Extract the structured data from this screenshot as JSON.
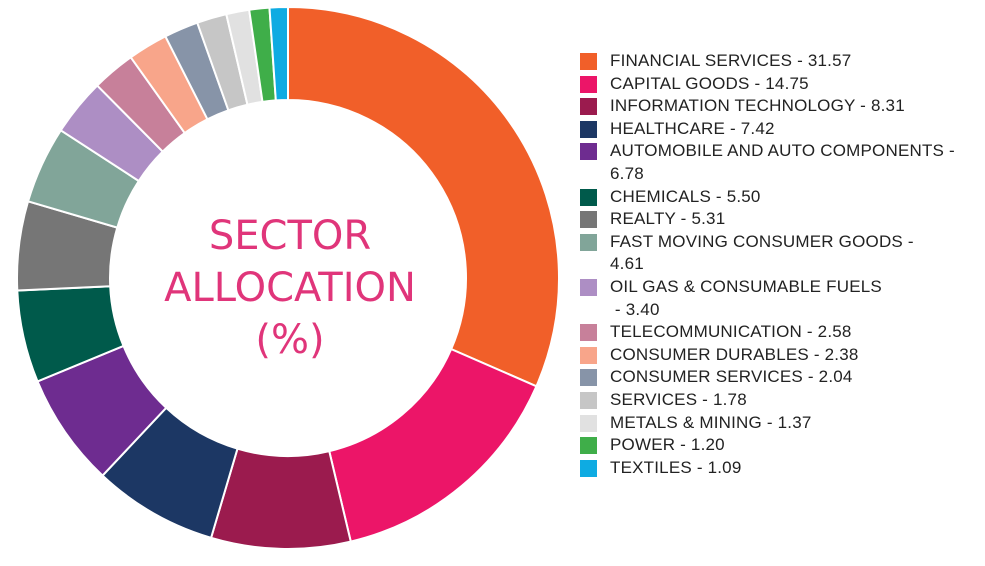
{
  "chart_data": {
    "type": "pie",
    "title_lines": [
      "SECTOR",
      "ALLOCATION",
      "(%)"
    ],
    "slices": [
      {
        "label": "FINANCIAL SERVICES - 31.57",
        "value": 31.57,
        "color": "#f15f29"
      },
      {
        "label": "CAPITAL GOODS - 14.75",
        "value": 14.75,
        "color": "#ec1568"
      },
      {
        "label": "INFORMATION TECHNOLOGY - 8.31",
        "value": 8.31,
        "color": "#9b1b4e"
      },
      {
        "label": "HEALTHCARE - 7.42",
        "value": 7.42,
        "color": "#1c3764"
      },
      {
        "label": "AUTOMOBILE AND AUTO COMPONENTS - 6.78",
        "value": 6.78,
        "color": "#6e2c90"
      },
      {
        "label": "CHEMICALS - 5.50",
        "value": 5.5,
        "color": "#005a4b"
      },
      {
        "label": "REALTY - 5.31",
        "value": 5.31,
        "color": "#767676"
      },
      {
        "label": "FAST MOVING CONSUMER GOODS - 4.61",
        "value": 4.61,
        "color": "#81a599"
      },
      {
        "label": "OIL GAS & CONSUMABLE FUELS - 3.40",
        "value": 3.4,
        "color": "#ad8ec4"
      },
      {
        "label": "TELECOMMUNICATION - 2.58",
        "value": 2.58,
        "color": "#c7809a"
      },
      {
        "label": "CONSUMER DURABLES - 2.38",
        "value": 2.38,
        "color": "#f8a58a"
      },
      {
        "label": "CONSUMER SERVICES - 2.04",
        "value": 2.04,
        "color": "#8794a8"
      },
      {
        "label": "SERVICES - 1.78",
        "value": 1.78,
        "color": "#c6c6c6"
      },
      {
        "label": "METALS & MINING - 1.37",
        "value": 1.37,
        "color": "#e1e1e1"
      },
      {
        "label": "POWER - 1.20",
        "value": 1.2,
        "color": "#3fae49"
      },
      {
        "label": "TEXTILES - 1.09",
        "value": 1.09,
        "color": "#0eabe2"
      }
    ]
  },
  "legend_lines": [
    [
      "FINANCIAL SERVICES - 31.57"
    ],
    [
      "CAPITAL GOODS - 14.75"
    ],
    [
      "INFORMATION TECHNOLOGY - 8.31"
    ],
    [
      "HEALTHCARE - 7.42"
    ],
    [
      "AUTOMOBILE AND AUTO COMPONENTS -",
      "6.78"
    ],
    [
      "CHEMICALS - 5.50"
    ],
    [
      "REALTY - 5.31"
    ],
    [
      "FAST MOVING CONSUMER GOODS -",
      "4.61"
    ],
    [
      "OIL GAS & CONSUMABLE FUELS",
      " - 3.40"
    ],
    [
      "TELECOMMUNICATION - 2.58"
    ],
    [
      "CONSUMER DURABLES - 2.38"
    ],
    [
      "CONSUMER SERVICES - 2.04"
    ],
    [
      "SERVICES - 1.78"
    ],
    [
      "METALS & MINING - 1.37"
    ],
    [
      "POWER - 1.20"
    ],
    [
      "TEXTILES - 1.09"
    ]
  ]
}
